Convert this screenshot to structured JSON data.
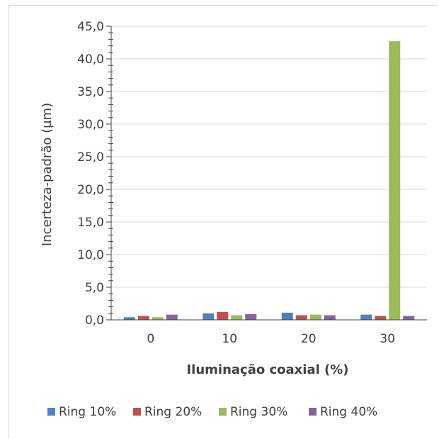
{
  "chart_data": {
    "type": "bar",
    "title": "",
    "xlabel": "Iluminação coaxial (%)",
    "ylabel": "Incerteza-padrão (µm)",
    "categories": [
      "0",
      "10",
      "20",
      "30"
    ],
    "ylim": [
      0,
      45
    ],
    "yticks": [
      "0,0",
      "5,0",
      "10,0",
      "15,0",
      "20,0",
      "25,0",
      "30,0",
      "35,0",
      "40,0",
      "45,0"
    ],
    "grid": true,
    "legend_position": "bottom",
    "series": [
      {
        "name": "Ring 10%",
        "color": "#4f81bd",
        "values": [
          0.4,
          1.0,
          1.1,
          0.8
        ]
      },
      {
        "name": "Ring 20%",
        "color": "#c0504d",
        "values": [
          0.6,
          1.2,
          0.7,
          0.6
        ]
      },
      {
        "name": "Ring 30%",
        "color": "#9bbb59",
        "values": [
          0.4,
          0.7,
          0.8,
          42.7
        ]
      },
      {
        "name": "Ring 40%",
        "color": "#8064a2",
        "values": [
          0.8,
          0.9,
          0.7,
          0.6
        ]
      }
    ]
  }
}
